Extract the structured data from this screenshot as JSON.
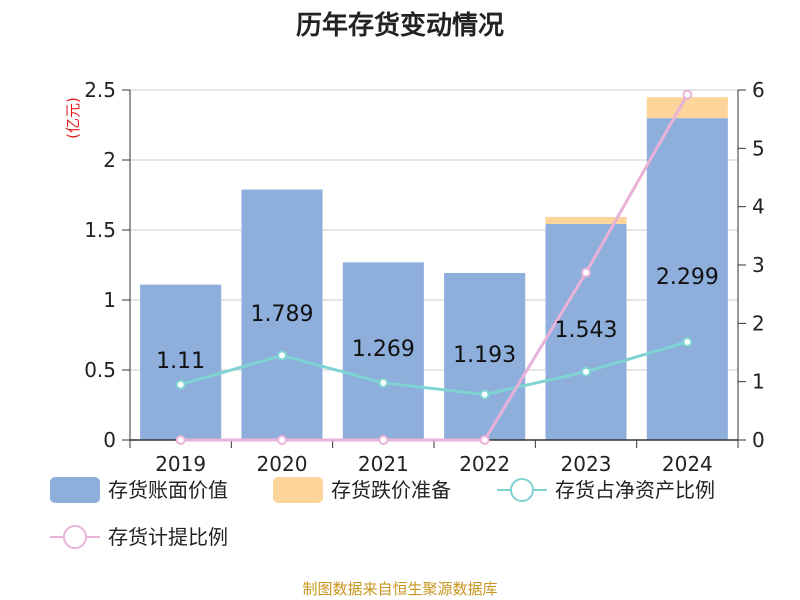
{
  "chart_data": {
    "type": "bar",
    "title": "历年存货变动情况",
    "ylabel_left": "(亿元)",
    "categories": [
      "2019",
      "2020",
      "2021",
      "2022",
      "2023",
      "2024"
    ],
    "y_left": {
      "range": [
        0,
        2.5
      ],
      "ticks": [
        "0",
        "0.5",
        "1",
        "1.5",
        "2",
        "2.5"
      ]
    },
    "y_right": {
      "range": [
        0,
        6
      ],
      "ticks": [
        "0",
        "1",
        "2",
        "3",
        "4",
        "5",
        "6"
      ]
    },
    "grid": true,
    "series": [
      {
        "name": "存货账面价值",
        "kind": "bar",
        "axis": "left",
        "values": [
          1.11,
          1.789,
          1.269,
          1.193,
          1.543,
          2.299
        ]
      },
      {
        "name": "存货跌价准备",
        "kind": "bar-stacked",
        "axis": "left",
        "values": [
          0,
          0,
          0,
          0,
          0.05,
          0.15
        ]
      },
      {
        "name": "存货占净资产比例",
        "kind": "line",
        "axis": "right",
        "values": [
          0.95,
          1.45,
          0.98,
          0.78,
          1.17,
          1.68
        ]
      },
      {
        "name": "存货计提比例",
        "kind": "line",
        "axis": "right",
        "values": [
          0,
          0,
          0,
          0,
          2.87,
          5.92
        ]
      }
    ],
    "data_labels": [
      "1.11",
      "1.789",
      "1.269",
      "1.193",
      "1.543",
      "2.299"
    ],
    "legend_position": "bottom",
    "colors": {
      "book_value": "#8eaedb",
      "provision": "#fdd59a",
      "ratio_net_assets": "#7fd3d3",
      "provision_ratio": "#e9b3d9"
    }
  },
  "source": "制图数据来自恒生聚源数据库"
}
